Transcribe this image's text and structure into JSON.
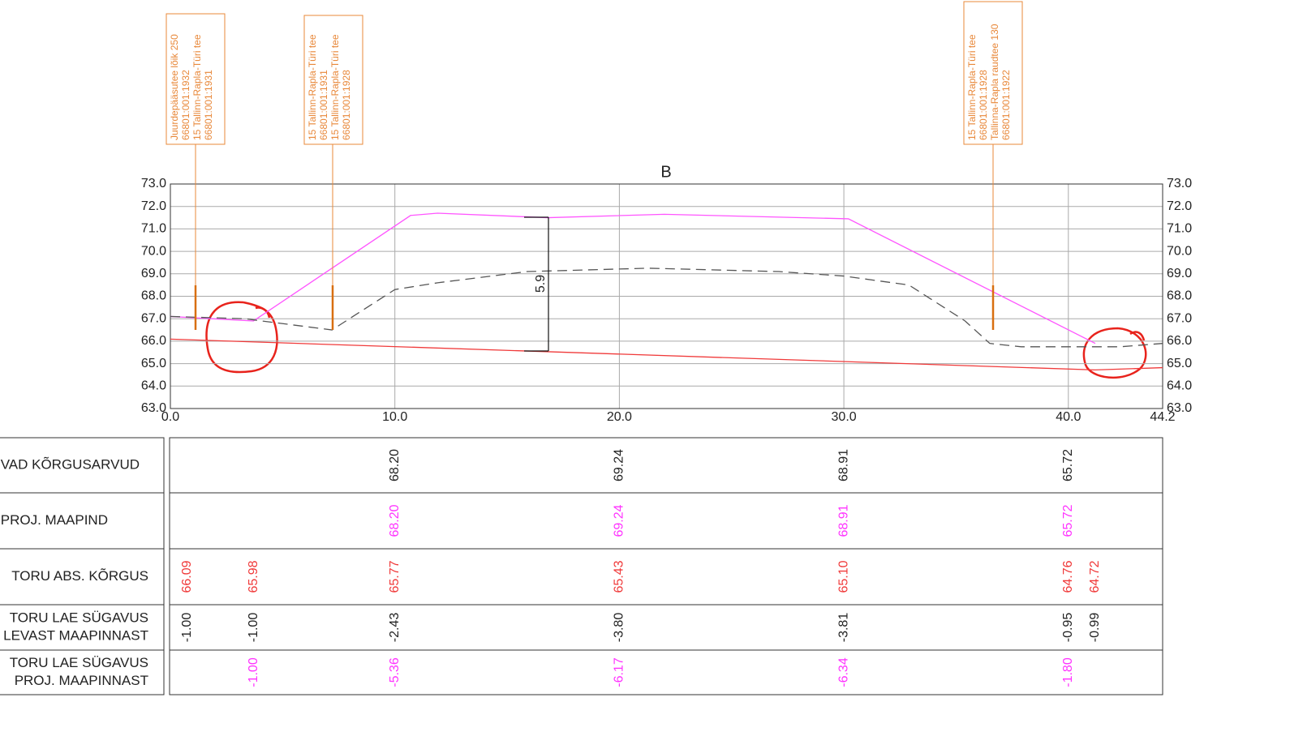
{
  "chart_data": {
    "type": "line",
    "title": "B",
    "xlim": [
      0,
      44.2
    ],
    "ylim": [
      63,
      73
    ],
    "xticks": [
      {
        "value": 0,
        "label": "0.0"
      },
      {
        "value": 10,
        "label": "10.0"
      },
      {
        "value": 20,
        "label": "20.0"
      },
      {
        "value": 30,
        "label": "30.0"
      },
      {
        "value": 40,
        "label": "40.0"
      },
      44.2
    ],
    "yticks": [
      {
        "value": 63,
        "label": "63.0"
      },
      {
        "value": 64,
        "label": "64.0"
      },
      {
        "value": 65,
        "label": "65.0"
      },
      {
        "value": 66,
        "label": "66.0"
      },
      {
        "value": 67,
        "label": "67.0"
      },
      {
        "value": 68,
        "label": "68.0"
      },
      {
        "value": 69,
        "label": "69.0"
      },
      {
        "value": 70,
        "label": "70.0"
      },
      {
        "value": 71,
        "label": "71.0"
      },
      {
        "value": 72,
        "label": "72.0"
      },
      {
        "value": 73,
        "label": "73.0"
      }
    ],
    "grid": true,
    "series": [
      {
        "color": "#ff55ff",
        "dash": false,
        "x": [
          0,
          3.7,
          10.7,
          11.9,
          16.8,
          22.0,
          30.2,
          41.2
        ],
        "values": [
          67.1,
          66.9,
          71.6,
          71.7,
          71.5,
          71.65,
          71.45,
          65.9
        ]
      },
      {
        "color": "#555555",
        "dash": true,
        "x": [
          0,
          3.3,
          7.2,
          10.0,
          11.9,
          15.9,
          21.3,
          27.1,
          30.0,
          32.9,
          35.4,
          36.5,
          37.9,
          42.3,
          44.2
        ],
        "values": [
          67.1,
          67.0,
          66.5,
          68.3,
          68.6,
          69.1,
          69.25,
          69.1,
          68.9,
          68.5,
          66.9,
          65.9,
          65.75,
          65.75,
          65.9
        ]
      },
      {
        "color": "#f03a3a",
        "dash": false,
        "x": [
          0,
          41.2,
          44.2
        ],
        "values": [
          66.09,
          64.72,
          64.82
        ]
      }
    ],
    "dimension_label": "5.9",
    "annotations": [
      {
        "lines": [
          "Juurdepääsutee lõik 250",
          "66801:001:1932",
          "15 Tallinn-Rapla-Türi tee",
          "66801:001:1931"
        ]
      },
      {
        "lines": [
          "15 Tallinn-Rapla-Türi tee",
          "66801:001:1931",
          "15 Tallinn-Rapla-Türi tee",
          "66801:001:1928"
        ]
      },
      {
        "lines": [
          "15 Tallinn-Rapla-Türi tee",
          "66801:001:1928",
          "Tallinna-Rapla raudtee 130",
          "66801:001:1922"
        ]
      }
    ]
  },
  "table": {
    "rows": [
      {
        "label": [
          "VAD KÕRGUSARVUD"
        ],
        "cells": [
          "68.20",
          "69.24",
          "68.91",
          "65.72"
        ]
      },
      {
        "label": [
          "PROJ. MAAPIND"
        ],
        "cells": [
          "68.20",
          "69.24",
          "68.91",
          "65.72"
        ]
      },
      {
        "label": [
          "TORU ABS. KÕRGUS"
        ],
        "cells": [
          "66.09",
          "65.98",
          "65.77",
          "65.43",
          "65.10",
          "64.76",
          "64.72"
        ]
      },
      {
        "label": [
          "TORU LAE SÜGAVUS",
          "LEVAST MAAPINNAST"
        ],
        "cells": [
          "-1.00",
          "-1.00",
          "-2.43",
          "-3.80",
          "-3.81",
          "-0.95",
          "-0.99"
        ]
      },
      {
        "label": [
          "TORU LAE SÜGAVUS",
          "PROJ. MAAPINNAST"
        ],
        "cells": [
          "-1.00",
          "-5.36",
          "-6.17",
          "-6.34",
          "-1.80"
        ]
      }
    ]
  }
}
